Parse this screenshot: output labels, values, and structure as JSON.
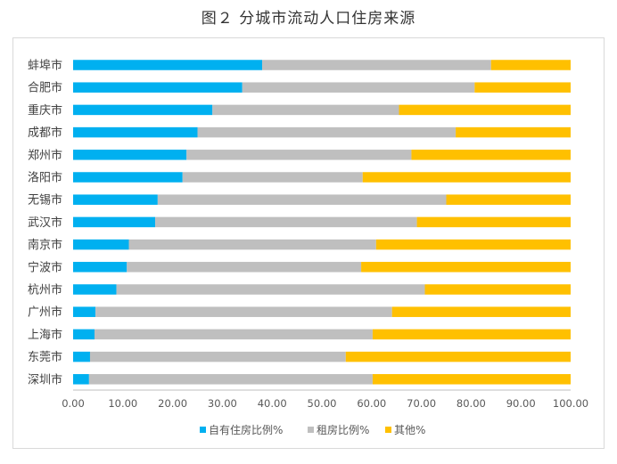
{
  "chart_data": {
    "type": "bar",
    "orientation": "horizontal",
    "stacked": true,
    "title": "图２ 分城市流动人口住房来源",
    "categories": [
      "蚌埠市",
      "合肥市",
      "重庆市",
      "成都市",
      "郑州市",
      "洛阳市",
      "无锡市",
      "武汉市",
      "南京市",
      "宁波市",
      "杭州市",
      "广州市",
      "上海市",
      "东莞市",
      "深圳市"
    ],
    "series": [
      {
        "name": "自有住房比例%",
        "color": "#00b0f0",
        "values": [
          38.0,
          34.0,
          28.0,
          25.0,
          22.8,
          22.0,
          17.0,
          16.5,
          11.2,
          10.8,
          8.7,
          4.5,
          4.3,
          3.4,
          3.2
        ]
      },
      {
        "name": "租房比例%",
        "color": "#bfbfbf",
        "values": [
          46.0,
          46.7,
          37.5,
          51.9,
          45.2,
          36.2,
          58.0,
          52.6,
          49.7,
          47.1,
          62.0,
          59.6,
          55.9,
          51.4,
          57.0
        ]
      },
      {
        "name": "其他%",
        "color": "#ffc000",
        "values": [
          16.0,
          19.3,
          34.5,
          23.1,
          32.0,
          41.8,
          25.0,
          30.9,
          39.1,
          42.1,
          29.3,
          35.9,
          39.8,
          45.2,
          39.8
        ]
      }
    ],
    "xlim": [
      0,
      100
    ],
    "xticks": [
      "0.00",
      "10.00",
      "20.00",
      "30.00",
      "40.00",
      "50.00",
      "60.00",
      "70.00",
      "80.00",
      "90.00",
      "100.00"
    ],
    "grid": false,
    "legend_position": "bottom"
  }
}
